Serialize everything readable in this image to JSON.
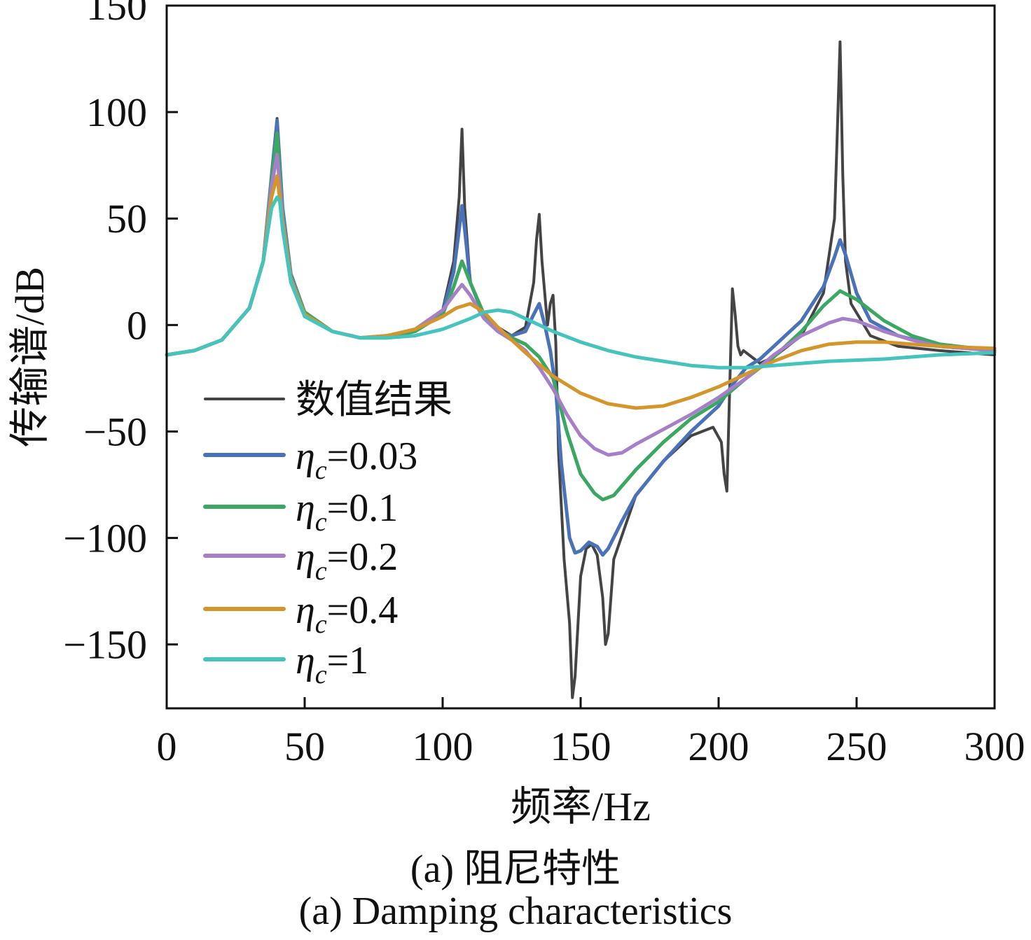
{
  "chart_data": {
    "type": "line",
    "xlabel": "频率/Hz",
    "ylabel": "传输谱/dB",
    "xlim": [
      0,
      300
    ],
    "ylim": [
      -180,
      150
    ],
    "xticks": [
      "0",
      "50",
      "100",
      "150",
      "200",
      "250",
      "300"
    ],
    "yticks": [
      "150",
      "100",
      "50",
      "0",
      "−50",
      "−100",
      "−150"
    ],
    "grid": false,
    "legend_position": "lower-left",
    "series": [
      {
        "name": "数值结果",
        "legend_symbol": "",
        "legend_value": "数值结果",
        "color": "#444444",
        "x": [
          0,
          10,
          20,
          30,
          35,
          38,
          40,
          42,
          45,
          50,
          60,
          70,
          80,
          90,
          100,
          104,
          106,
          107,
          108,
          110,
          115,
          120,
          125,
          130,
          133,
          134,
          135,
          136,
          138,
          139,
          140,
          141,
          142,
          144,
          146,
          147,
          148,
          150,
          152,
          154,
          156,
          158,
          159,
          160,
          162,
          170,
          180,
          190,
          198,
          201,
          202,
          203,
          204,
          205,
          206,
          207,
          208,
          209,
          212,
          215,
          220,
          230,
          238,
          242,
          243,
          244,
          245,
          246,
          248,
          255,
          265,
          280,
          300
        ],
        "y": [
          -14,
          -12,
          -7,
          8,
          30,
          70,
          97,
          55,
          24,
          6,
          -3,
          -6,
          -6,
          -3,
          7,
          30,
          60,
          92,
          55,
          20,
          5,
          -1,
          -5,
          -1,
          20,
          40,
          52,
          30,
          0,
          10,
          14,
          -8,
          -60,
          -110,
          -140,
          -175,
          -165,
          -118,
          -105,
          -103,
          -108,
          -128,
          -150,
          -145,
          -110,
          -80,
          -64,
          -52,
          -48,
          -55,
          -70,
          -78,
          -30,
          17,
          5,
          -10,
          -14,
          -12,
          -15,
          -18,
          -15,
          -5,
          15,
          50,
          90,
          133,
          70,
          30,
          10,
          -5,
          -10,
          -12,
          -14
        ]
      },
      {
        "name": "η_c=0.03",
        "legend_symbol": "η",
        "legend_sub": "c",
        "legend_value": "=0.03",
        "color": "#4a72b8",
        "x": [
          0,
          10,
          20,
          30,
          35,
          38,
          40,
          42,
          45,
          50,
          60,
          70,
          80,
          90,
          100,
          104,
          106,
          107,
          108,
          110,
          115,
          120,
          125,
          130,
          133,
          135,
          137,
          139,
          141,
          143,
          146,
          148,
          150,
          153,
          156,
          158,
          160,
          165,
          170,
          180,
          190,
          200,
          205,
          210,
          215,
          220,
          230,
          238,
          242,
          244,
          246,
          250,
          255,
          265,
          280,
          300
        ],
        "y": [
          -14,
          -12,
          -7,
          8,
          30,
          70,
          96,
          55,
          24,
          6,
          -3,
          -6,
          -6,
          -3,
          6,
          25,
          45,
          56,
          45,
          20,
          4,
          -3,
          -5,
          -3,
          5,
          10,
          0,
          -12,
          -30,
          -65,
          -100,
          -107,
          -106,
          -102,
          -104,
          -108,
          -105,
          -92,
          -80,
          -64,
          -50,
          -38,
          -28,
          -20,
          -16,
          -10,
          2,
          18,
          32,
          40,
          33,
          15,
          2,
          -5,
          -10,
          -12
        ]
      },
      {
        "name": "η_c=0.1",
        "legend_symbol": "η",
        "legend_sub": "c",
        "legend_value": "=0.1",
        "color": "#3aa860",
        "x": [
          0,
          10,
          20,
          30,
          35,
          38,
          40,
          42,
          45,
          50,
          60,
          70,
          80,
          90,
          100,
          104,
          107,
          110,
          115,
          120,
          125,
          130,
          135,
          140,
          145,
          150,
          155,
          158,
          162,
          170,
          180,
          190,
          200,
          210,
          220,
          230,
          238,
          244,
          250,
          260,
          270,
          280,
          300
        ],
        "y": [
          -14,
          -12,
          -7,
          8,
          30,
          68,
          90,
          52,
          23,
          6,
          -3,
          -6,
          -6,
          -3,
          5,
          18,
          30,
          20,
          5,
          -2,
          -6,
          -9,
          -15,
          -25,
          -50,
          -70,
          -79,
          -82,
          -80,
          -68,
          -55,
          -44,
          -36,
          -25,
          -15,
          -3,
          9,
          16,
          12,
          2,
          -5,
          -9,
          -12
        ]
      },
      {
        "name": "η_c=0.2",
        "legend_symbol": "η",
        "legend_sub": "c",
        "legend_value": "=0.2",
        "color": "#a77fc8",
        "x": [
          0,
          10,
          20,
          30,
          35,
          38,
          40,
          42,
          45,
          50,
          60,
          70,
          80,
          90,
          100,
          104,
          107,
          110,
          115,
          120,
          125,
          130,
          135,
          140,
          145,
          150,
          155,
          160,
          165,
          170,
          180,
          190,
          200,
          210,
          220,
          230,
          240,
          245,
          250,
          260,
          270,
          280,
          300
        ],
        "y": [
          -14,
          -12,
          -7,
          8,
          30,
          65,
          80,
          50,
          22,
          5,
          -3,
          -6,
          -5,
          -2,
          7,
          14,
          19,
          14,
          3,
          -3,
          -7,
          -12,
          -20,
          -30,
          -42,
          -52,
          -58,
          -61,
          -60,
          -56,
          -49,
          -42,
          -34,
          -25,
          -14,
          -5,
          1,
          3,
          2,
          -3,
          -7,
          -10,
          -12
        ]
      },
      {
        "name": "η_c=0.4",
        "legend_symbol": "η",
        "legend_sub": "c",
        "legend_value": "=0.4",
        "color": "#d4962a",
        "x": [
          0,
          10,
          20,
          30,
          35,
          38,
          40,
          42,
          45,
          50,
          60,
          70,
          80,
          90,
          100,
          105,
          110,
          115,
          120,
          125,
          130,
          140,
          150,
          160,
          170,
          180,
          190,
          200,
          210,
          220,
          230,
          240,
          250,
          260,
          270,
          280,
          300
        ],
        "y": [
          -14,
          -12,
          -7,
          8,
          30,
          60,
          70,
          48,
          21,
          5,
          -3,
          -6,
          -5,
          -2,
          4,
          8,
          10,
          6,
          -1,
          -7,
          -13,
          -24,
          -32,
          -37,
          -39,
          -38,
          -34,
          -29,
          -23,
          -17,
          -12,
          -9,
          -8,
          -8,
          -9,
          -10,
          -11
        ]
      },
      {
        "name": "η_c=1",
        "legend_symbol": "η",
        "legend_sub": "c",
        "legend_value": "=1",
        "color": "#45c3bd",
        "x": [
          0,
          10,
          20,
          30,
          35,
          38,
          40,
          41,
          42,
          45,
          50,
          60,
          70,
          80,
          90,
          100,
          110,
          115,
          120,
          125,
          130,
          140,
          150,
          160,
          170,
          180,
          190,
          200,
          210,
          220,
          240,
          260,
          280,
          300
        ],
        "y": [
          -14,
          -12,
          -7,
          8,
          30,
          55,
          60,
          58,
          45,
          20,
          4,
          -3,
          -6,
          -6,
          -5,
          -2,
          3,
          6,
          7,
          6,
          3,
          -3,
          -8,
          -12,
          -15,
          -17,
          -19,
          -20,
          -20,
          -19,
          -17,
          -16,
          -14,
          -13
        ]
      }
    ],
    "caption_cn": "(a) 阻尼特性",
    "caption_en": "(a) Damping characteristics"
  }
}
